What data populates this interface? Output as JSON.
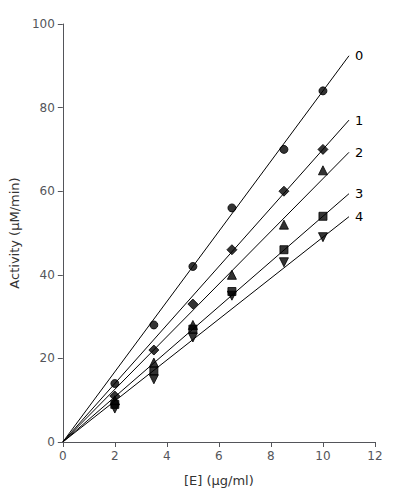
{
  "chart_data": {
    "type": "scatter",
    "xlabel": "[E] (μg/ml)",
    "ylabel": "Activity (μM/min)",
    "color": "black",
    "xlim": [
      0,
      12
    ],
    "ylim": [
      0,
      100
    ],
    "xticks": [
      0,
      2,
      4,
      6,
      8,
      10,
      12
    ],
    "yticks": [
      0,
      20,
      40,
      60,
      80,
      100
    ],
    "grid": false,
    "series": [
      {
        "name": "0",
        "marker": "circle",
        "x": [
          2.0,
          3.5,
          5.0,
          6.5,
          8.5,
          10.0
        ],
        "values": [
          14.0,
          28.0,
          42.0,
          56.0,
          70.0,
          84.0
        ],
        "line_x": [
          0,
          11.0
        ],
        "line_y": [
          0,
          92.4
        ]
      },
      {
        "name": "1",
        "marker": "diamond",
        "x": [
          2.0,
          3.5,
          5.0,
          6.5,
          8.5,
          10.0
        ],
        "values": [
          11.0,
          22.0,
          33.0,
          46.0,
          60.0,
          70.0
        ],
        "line_x": [
          0,
          11.0
        ],
        "line_y": [
          0,
          77.0
        ]
      },
      {
        "name": "2",
        "marker": "triangle",
        "x": [
          2.0,
          3.5,
          5.0,
          6.5,
          8.5,
          10.0
        ],
        "values": [
          10.0,
          19.0,
          28.0,
          40.0,
          52.0,
          65.0
        ],
        "line_x": [
          0,
          11.0
        ],
        "line_y": [
          0,
          69.3
        ]
      },
      {
        "name": "3",
        "marker": "square",
        "x": [
          2.0,
          3.5,
          5.0,
          6.5,
          8.5,
          10.0
        ],
        "values": [
          9.0,
          17.0,
          27.0,
          36.0,
          46.0,
          54.0
        ],
        "line_x": [
          0,
          11.0
        ],
        "line_y": [
          0,
          59.4
        ]
      },
      {
        "name": "4",
        "marker": "triangle_down",
        "x": [
          2.0,
          3.5,
          5.0,
          6.5,
          8.5,
          10.0
        ],
        "values": [
          8.0,
          15.0,
          25.0,
          35.0,
          43.0,
          49.0
        ],
        "line_x": [
          0,
          11.0
        ],
        "line_y": [
          0,
          53.9
        ]
      }
    ]
  }
}
